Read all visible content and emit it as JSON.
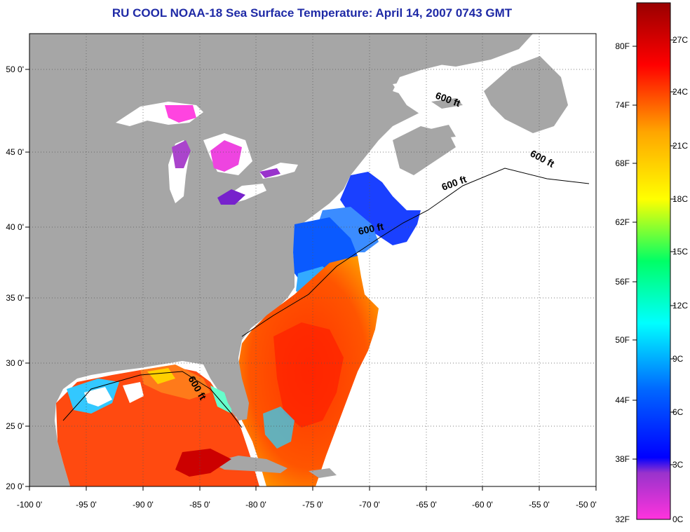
{
  "title": "RU COOL  NOAA-18  Sea Surface Temperature:  April 14, 2007 0743 GMT",
  "map": {
    "lon_range": [
      -100,
      -50
    ],
    "lat_range": [
      20,
      52.5
    ],
    "lon_ticks": [
      "-100 0'",
      "-95 0'",
      "-90 0'",
      "-85 0'",
      "-80 0'",
      "-75 0'",
      "-70 0'",
      "-65 0'",
      "-60 0'",
      "-55 0'",
      "-50 0'"
    ],
    "lat_ticks": [
      "20 0'",
      "25 0'",
      "30 0'",
      "35 0'",
      "40 0'",
      "45 0'",
      "50 0'"
    ],
    "grid": true,
    "land_color": "#a6a6a6",
    "contour_labels": [
      "600 ft",
      "600 ft",
      "600 ft",
      "600 ft",
      "600 ft"
    ]
  },
  "colorbar": {
    "fahrenheit": [
      "80F",
      "74F",
      "68F",
      "62F",
      "56F",
      "50F",
      "44F",
      "38F",
      "32F"
    ],
    "celsius": [
      "27C",
      "24C",
      "21C",
      "18C",
      "15C",
      "12C",
      "9C",
      "6C",
      "3C",
      "0C"
    ],
    "colors": [
      "#8b0000",
      "#ff0000",
      "#ff8c00",
      "#ffff00",
      "#00ff80",
      "#00ffff",
      "#0000ff",
      "#ff00ff"
    ]
  }
}
